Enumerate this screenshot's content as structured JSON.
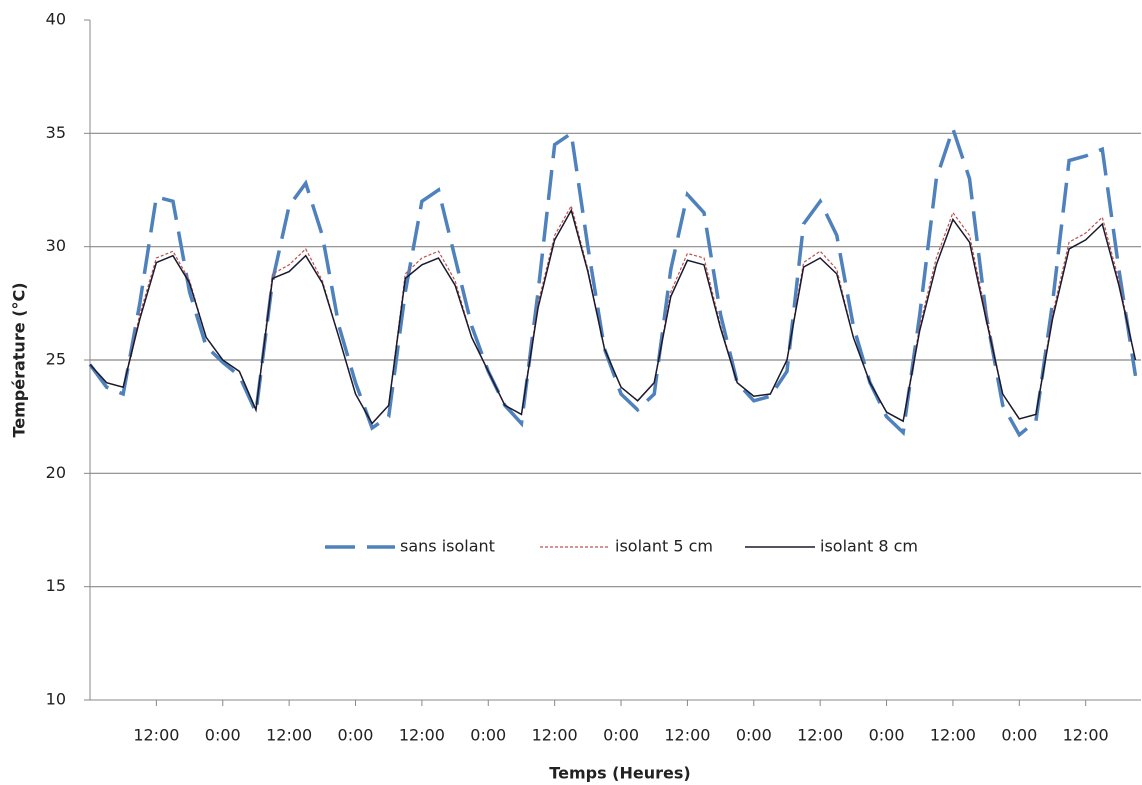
{
  "chart_data": {
    "type": "line",
    "x_label": "Temps (Heures)",
    "y_label": "Température (°C)",
    "x": [
      0,
      3,
      6,
      9,
      12,
      15,
      18,
      21,
      24,
      27,
      30,
      33,
      36,
      39,
      42,
      45,
      48,
      51,
      54,
      57,
      60,
      63,
      66,
      69,
      72,
      75,
      78,
      81,
      84,
      87,
      90,
      93,
      96,
      99,
      102,
      105,
      108,
      111,
      114,
      117,
      120,
      123,
      126,
      129,
      132,
      135,
      138,
      141,
      144,
      147,
      150,
      153,
      156,
      159,
      162,
      165,
      168,
      171,
      174,
      177,
      180,
      183,
      186,
      189
    ],
    "xlim": [
      0,
      190
    ],
    "xticks": [
      {
        "value": 12,
        "label": "12:00"
      },
      {
        "value": 24,
        "label": "0:00"
      },
      {
        "value": 36,
        "label": "12:00"
      },
      {
        "value": 48,
        "label": "0:00"
      },
      {
        "value": 60,
        "label": "12:00"
      },
      {
        "value": 72,
        "label": "0:00"
      },
      {
        "value": 84,
        "label": "12:00"
      },
      {
        "value": 96,
        "label": "0:00"
      },
      {
        "value": 108,
        "label": "12:00"
      },
      {
        "value": 120,
        "label": "0:00"
      },
      {
        "value": 132,
        "label": "12:00"
      },
      {
        "value": 144,
        "label": "0:00"
      },
      {
        "value": 156,
        "label": "12:00"
      },
      {
        "value": 168,
        "label": "0:00"
      },
      {
        "value": 180,
        "label": "12:00"
      }
    ],
    "ylim": [
      10,
      40
    ],
    "yticks": [
      10,
      15,
      20,
      25,
      30,
      35,
      40
    ],
    "grid": true,
    "legend": "center",
    "series": [
      {
        "name": "sans isolant",
        "color": "#4f81bd",
        "style": "dashed",
        "values": [
          24.8,
          23.8,
          23.5,
          27.5,
          32.2,
          32.0,
          28.0,
          25.6,
          24.9,
          24.3,
          22.7,
          28.5,
          31.8,
          32.8,
          30.5,
          26.5,
          24.0,
          22.0,
          22.5,
          28.0,
          32.0,
          32.5,
          29.5,
          26.5,
          24.5,
          23.0,
          22.2,
          28.0,
          34.5,
          35.0,
          30.0,
          25.5,
          23.5,
          22.8,
          23.5,
          29.0,
          32.3,
          31.5,
          27.0,
          24.0,
          23.2,
          23.4,
          24.5,
          31.0,
          32.0,
          30.5,
          26.5,
          24.0,
          22.5,
          21.8,
          27.0,
          33.0,
          35.2,
          33.0,
          27.0,
          23.0,
          21.7,
          22.3,
          27.5,
          33.8,
          34.0,
          34.3,
          29.0,
          24.3
        ]
      },
      {
        "name": "isolant 5 cm",
        "color": "#c0504d",
        "style": "dotted",
        "values": [
          24.8,
          24.0,
          23.8,
          27.0,
          29.5,
          29.8,
          28.5,
          26.0,
          25.0,
          24.5,
          22.8,
          28.8,
          29.2,
          29.9,
          28.5,
          26.0,
          23.5,
          22.2,
          23.0,
          28.8,
          29.5,
          29.8,
          28.5,
          26.0,
          24.5,
          23.0,
          22.6,
          27.5,
          30.5,
          31.8,
          29.0,
          25.5,
          23.8,
          23.2,
          24.0,
          28.0,
          29.7,
          29.5,
          26.5,
          24.0,
          23.4,
          23.5,
          25.0,
          29.3,
          29.8,
          29.0,
          26.0,
          24.0,
          22.7,
          22.3,
          26.5,
          29.5,
          31.5,
          30.5,
          27.0,
          23.5,
          22.4,
          22.6,
          27.0,
          30.2,
          30.6,
          31.3,
          28.5,
          25.0
        ]
      },
      {
        "name": "isolant 8 cm",
        "color": "#1a1a2e",
        "style": "solid",
        "values": [
          24.8,
          24.0,
          23.8,
          26.8,
          29.3,
          29.6,
          28.4,
          26.0,
          25.0,
          24.5,
          22.8,
          28.6,
          28.9,
          29.6,
          28.4,
          26.0,
          23.5,
          22.2,
          23.0,
          28.6,
          29.2,
          29.5,
          28.3,
          26.0,
          24.5,
          23.0,
          22.6,
          27.3,
          30.3,
          31.6,
          28.9,
          25.5,
          23.8,
          23.2,
          24.0,
          27.8,
          29.4,
          29.2,
          26.4,
          24.0,
          23.4,
          23.5,
          25.0,
          29.1,
          29.5,
          28.8,
          26.0,
          24.0,
          22.7,
          22.3,
          26.3,
          29.2,
          31.2,
          30.2,
          26.8,
          23.5,
          22.4,
          22.6,
          26.8,
          29.9,
          30.3,
          31.0,
          28.3,
          25.0
        ]
      }
    ]
  }
}
